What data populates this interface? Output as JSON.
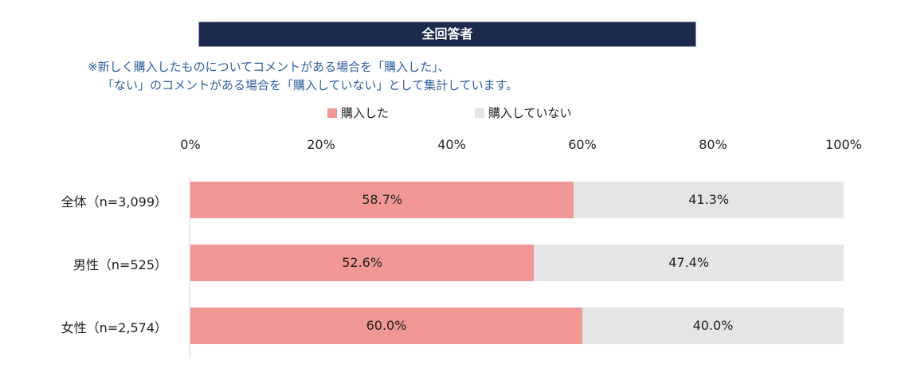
{
  "header": {
    "title": "全回答者"
  },
  "notes": [
    "※新しく購入したものについてコメントがある場合を「購入した」、",
    "「ない」のコメントがある場合を「購入していない」として集計しています。"
  ],
  "chart_data": {
    "type": "bar",
    "orientation": "horizontal",
    "stacked": true,
    "title": "全回答者",
    "categories": [
      "全体（n=3,099）",
      "男性（n=525）",
      "女性（n=2,574）"
    ],
    "series": [
      {
        "name": "購入した",
        "color": "#f19795",
        "values": [
          58.7,
          52.6,
          60.0
        ],
        "labels": [
          "58.7%",
          "52.6%",
          "60.0%"
        ]
      },
      {
        "name": "購入していない",
        "color": "#e5e5e5",
        "values": [
          41.3,
          47.4,
          40.0
        ],
        "labels": [
          "41.3%",
          "47.4%",
          "40.0%"
        ]
      }
    ],
    "xlim": [
      0,
      100
    ],
    "xticks": [
      "0%",
      "20%",
      "40%",
      "60%",
      "80%",
      "100%"
    ],
    "legend_position": "top",
    "grid": false
  }
}
